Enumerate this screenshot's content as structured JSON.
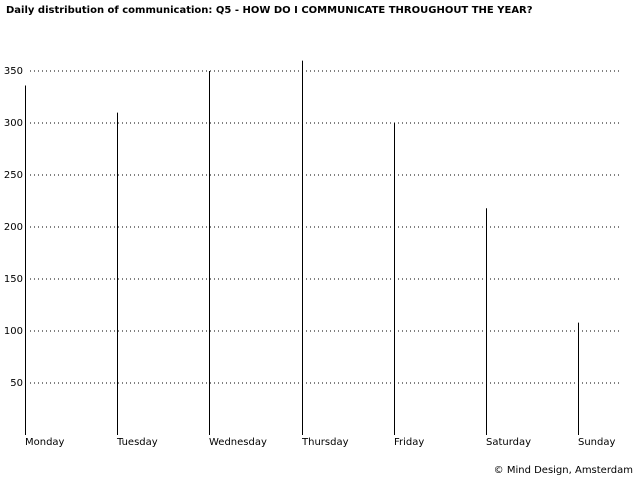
{
  "chart_data": {
    "type": "bar",
    "title": "Daily distribution of communication: Q5 - HOW DO I COMMUNICATE THROUGHOUT THE YEAR?",
    "credit": "© Mind Design, Amsterdam",
    "categories": [
      "Monday",
      "Tuesday",
      "Wednesday",
      "Thursday",
      "Friday",
      "Saturday",
      "Sunday"
    ],
    "values": [
      336,
      310,
      350,
      360,
      300,
      218,
      108
    ],
    "color": "#000000",
    "ylim": [
      0,
      360
    ],
    "yticks": [
      50,
      100,
      150,
      200,
      250,
      300,
      350
    ],
    "grid": true
  }
}
